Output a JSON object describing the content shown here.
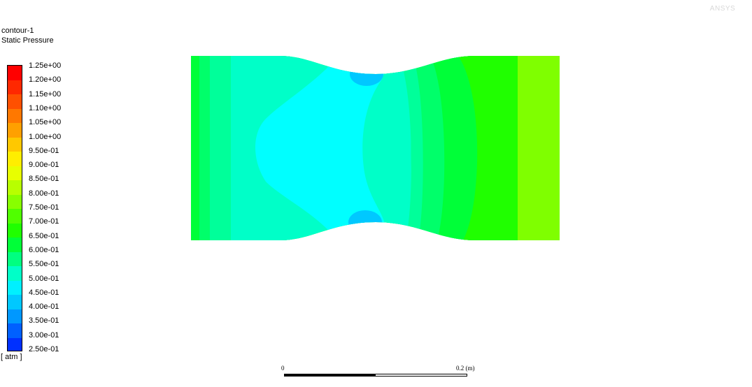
{
  "contour": {
    "name": "contour-1",
    "variable": "Static Pressure",
    "unit": "[ atm ]"
  },
  "colorbar": {
    "labels": [
      "1.25e+00",
      "1.20e+00",
      "1.15e+00",
      "1.10e+00",
      "1.05e+00",
      "1.00e+00",
      "9.50e-01",
      "9.00e-01",
      "8.50e-01",
      "8.00e-01",
      "7.50e-01",
      "7.00e-01",
      "6.50e-01",
      "6.00e-01",
      "5.50e-01",
      "5.00e-01",
      "4.50e-01",
      "4.00e-01",
      "3.50e-01",
      "3.00e-01",
      "2.50e-01"
    ],
    "colors": [
      "#ff0000",
      "#ff2800",
      "#ff5000",
      "#ff7800",
      "#ffa000",
      "#ffc800",
      "#ffee00",
      "#e8ff00",
      "#b8ff00",
      "#88ff00",
      "#50ff00",
      "#20ff00",
      "#00ff38",
      "#00ff80",
      "#00ffc8",
      "#00f0ff",
      "#00c8ff",
      "#0098ff",
      "#0060ff",
      "#0030ff",
      "#0000ff"
    ],
    "min": 0.25,
    "max": 1.25
  },
  "scale_bar": {
    "start_label": "0",
    "end_label": "0.2 (m)"
  },
  "logo": {
    "text": "ANSYS"
  },
  "field_colors": {
    "c050": "#00ffff",
    "c055": "#00ffc8",
    "c060": "#00ff9a",
    "c065": "#00ff6a",
    "c070": "#00ff38",
    "c075": "#20ff00",
    "c080": "#7fff00",
    "c045": "#00c8ff"
  }
}
